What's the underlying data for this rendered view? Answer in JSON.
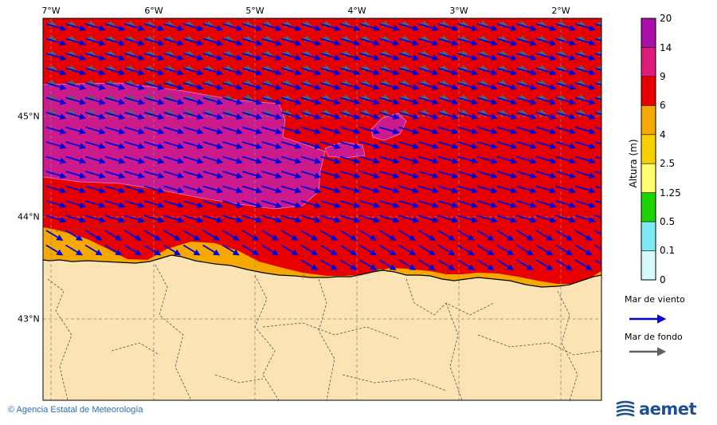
{
  "map": {
    "lon_labels": [
      "7°W",
      "6°W",
      "5°W",
      "4°W",
      "3°W",
      "2°W"
    ],
    "lat_labels": [
      "45°N",
      "44°N",
      "43°N"
    ],
    "colors": {
      "land": "#FCE3B4",
      "sea_high": "#E80000",
      "sea_very_high": "#CC1A8C",
      "sea_coastal": "#F5A800",
      "wind_arrow": "#0000DD",
      "swell_arrow": "#606060",
      "grid": "#888888"
    }
  },
  "colorbar": {
    "title": "Altura (m)",
    "ticks": [
      "20",
      "14",
      "9",
      "6",
      "4",
      "2.5",
      "1.25",
      "0.5",
      "0.1",
      "0"
    ],
    "colors": [
      "#A910A9",
      "#DE1A7A",
      "#E80000",
      "#F5A800",
      "#F6D000",
      "#FFFF6E",
      "#1ED400",
      "#7FE8F5",
      "#D6F9FC"
    ]
  },
  "legend": {
    "wind_label": "Mar de viento",
    "swell_label": "Mar de fondo",
    "wind_icon": "blue-arrow-icon",
    "swell_icon": "gray-arrow-icon"
  },
  "footer": {
    "credit": "© Agencia Estatal de Meteorología",
    "brand": "aemet"
  }
}
